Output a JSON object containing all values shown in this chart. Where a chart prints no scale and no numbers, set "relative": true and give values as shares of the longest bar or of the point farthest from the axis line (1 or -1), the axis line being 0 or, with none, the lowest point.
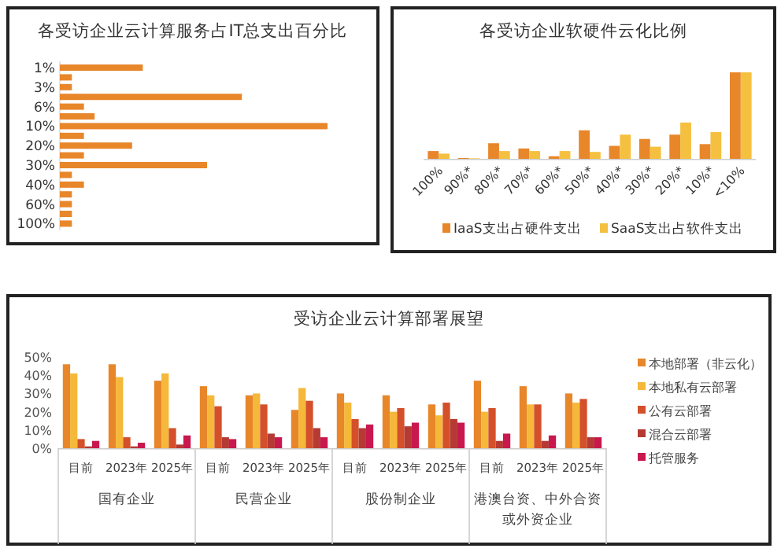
{
  "chart_data": [
    {
      "type": "bar",
      "title": "各受访企业云计算服务占IT总支出百分比",
      "orientation": "horizontal",
      "relative": true,
      "color": "#e8862a",
      "categories": [
        "1%",
        null,
        "3%",
        null,
        "6%",
        null,
        "10%",
        null,
        "20%",
        null,
        "30%",
        null,
        "40%",
        null,
        "60%",
        null,
        "100%"
      ],
      "values": [
        0.31,
        0.045,
        0.045,
        0.68,
        0.09,
        0.13,
        1,
        0.09,
        0.27,
        0.09,
        0.55,
        0.045,
        0.09,
        0.045,
        0.045,
        0.045,
        0.045
      ]
    },
    {
      "type": "bar",
      "title": "各受访企业软硬件云化比例",
      "relative": true,
      "legend": "bottom",
      "categories": [
        "100%",
        "90%*",
        "80%*",
        "70%*",
        "60%*",
        "50%*",
        "40%*",
        "30%*",
        "20%*",
        "10%*",
        "<10%"
      ],
      "series": [
        {
          "name": "IaaS支出占硬件支出",
          "color": "#e8862a",
          "values": [
            0.09,
            0.01,
            0.18,
            0.12,
            0.03,
            0.33,
            0.15,
            0.23,
            0.28,
            0.17,
            1
          ]
        },
        {
          "name": "SaaS支出占软件支出",
          "color": "#f5c040",
          "values": [
            0.06,
            0.006,
            0.09,
            0.09,
            0.09,
            0.08,
            0.28,
            0.14,
            0.42,
            0.31,
            1
          ]
        }
      ]
    },
    {
      "type": "bar",
      "title": "受访企业云计算部署展望",
      "legend": "right",
      "ylim": [
        0,
        50
      ],
      "yticks": [
        {
          "value": 0,
          "label": "0%"
        },
        {
          "value": 10,
          "label": "10%"
        },
        {
          "value": 20,
          "label": "20%"
        },
        {
          "value": 30,
          "label": "30%"
        },
        {
          "value": 40,
          "label": "40%"
        },
        {
          "value": 50,
          "label": "50%"
        }
      ],
      "categories": [
        "目前",
        "2023年",
        "2025年",
        "目前",
        "2023年",
        "2025年",
        "目前",
        "2023年",
        "2025年",
        "目前",
        "2023年",
        "2025年"
      ],
      "annotations": [
        "国有企业",
        "民营企业",
        "股份制企业",
        "港澳台资、中外合资或外资企业"
      ],
      "series": [
        {
          "name": "本地部署（非云化）",
          "color": "#e8862a",
          "values": [
            46,
            46,
            37,
            34,
            29,
            21,
            30,
            29,
            24,
            37,
            34,
            30
          ]
        },
        {
          "name": "本地私有云部署",
          "color": "#f5b83a",
          "values": [
            41,
            39,
            41,
            29,
            30,
            33,
            25,
            20,
            18,
            20,
            24,
            25
          ]
        },
        {
          "name": "公有云部署",
          "color": "#d4502a",
          "values": [
            5,
            6,
            11,
            23,
            24,
            26,
            16,
            22,
            25,
            22,
            24,
            27
          ]
        },
        {
          "name": "混合云部署",
          "color": "#b53a34",
          "values": [
            1,
            1,
            2,
            6,
            8,
            11,
            11,
            12,
            16,
            4,
            4,
            6
          ]
        },
        {
          "name": "托管服务",
          "color": "#c8184e",
          "values": [
            4,
            3,
            7,
            5,
            6,
            6,
            13,
            14,
            14,
            8,
            7,
            6
          ]
        }
      ]
    }
  ]
}
